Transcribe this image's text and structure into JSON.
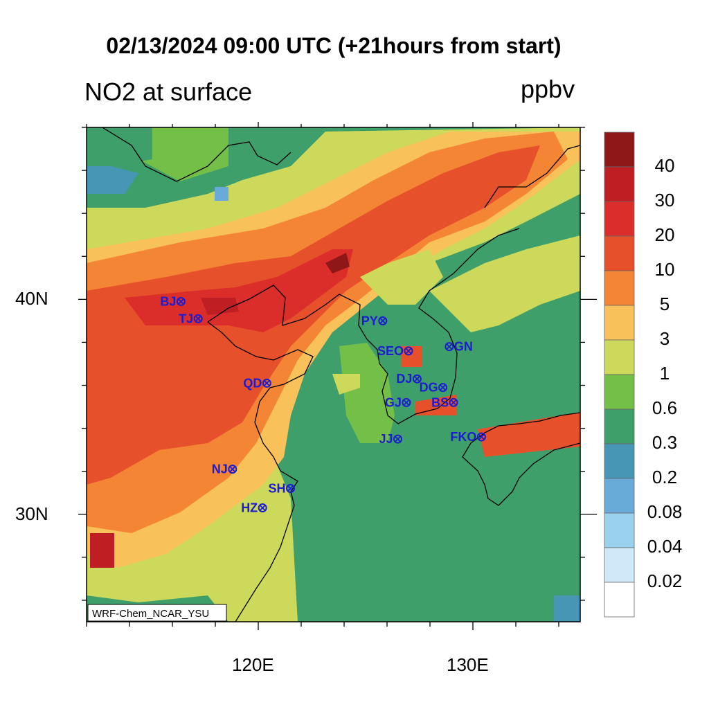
{
  "title": "02/13/2024 09:00 UTC (+21hours from start)",
  "left_subtitle": "NO2 at surface",
  "units": "ppbv",
  "credit": "WRF-Chem_NCAR_YSU",
  "axes": {
    "lon_range": [
      112,
      135
    ],
    "lat_range": [
      25,
      48
    ],
    "x_ticks": [
      {
        "lon": 120,
        "label": "120E"
      },
      {
        "lon": 130,
        "label": "130E"
      }
    ],
    "y_ticks": [
      {
        "lat": 40,
        "label": "40N"
      },
      {
        "lat": 30,
        "label": "30N"
      }
    ]
  },
  "colorbar": {
    "labels": [
      "40",
      "30",
      "20",
      "10",
      "5",
      "3",
      "1",
      "0.6",
      "0.3",
      "0.2",
      "0.08",
      "0.04",
      "0.02"
    ],
    "colors": [
      "#8e1818",
      "#bf1e23",
      "#db2e2a",
      "#e6502b",
      "#f48535",
      "#f9c15a",
      "#cdd95a",
      "#74bf48",
      "#3e9f6a",
      "#4796b6",
      "#68abd9",
      "#9ad1ef",
      "#d0e9f8",
      "#ffffff"
    ]
  },
  "stations": [
    {
      "code": "BJ",
      "lon": 116.4,
      "lat": 39.9,
      "side": "left"
    },
    {
      "code": "TJ",
      "lon": 117.2,
      "lat": 39.1,
      "side": "left"
    },
    {
      "code": "PY",
      "lon": 125.8,
      "lat": 39.0,
      "side": "left"
    },
    {
      "code": "SEO",
      "lon": 127.0,
      "lat": 37.6,
      "side": "left"
    },
    {
      "code": "GN",
      "lon": 128.9,
      "lat": 37.8,
      "side": "right"
    },
    {
      "code": "QD",
      "lon": 120.4,
      "lat": 36.1,
      "side": "left"
    },
    {
      "code": "DJ",
      "lon": 127.4,
      "lat": 36.3,
      "side": "left"
    },
    {
      "code": "DG",
      "lon": 128.6,
      "lat": 35.9,
      "side": "left"
    },
    {
      "code": "GJ",
      "lon": 126.9,
      "lat": 35.2,
      "side": "left"
    },
    {
      "code": "BS",
      "lon": 129.1,
      "lat": 35.2,
      "side": "left"
    },
    {
      "code": "JJ",
      "lon": 126.5,
      "lat": 33.5,
      "side": "left"
    },
    {
      "code": "FKO",
      "lon": 130.4,
      "lat": 33.6,
      "side": "left"
    },
    {
      "code": "NJ",
      "lon": 118.8,
      "lat": 32.1,
      "side": "left"
    },
    {
      "code": "SH",
      "lon": 121.5,
      "lat": 31.2,
      "side": "left"
    },
    {
      "code": "HZ",
      "lon": 120.2,
      "lat": 30.3,
      "side": "left"
    }
  ]
}
